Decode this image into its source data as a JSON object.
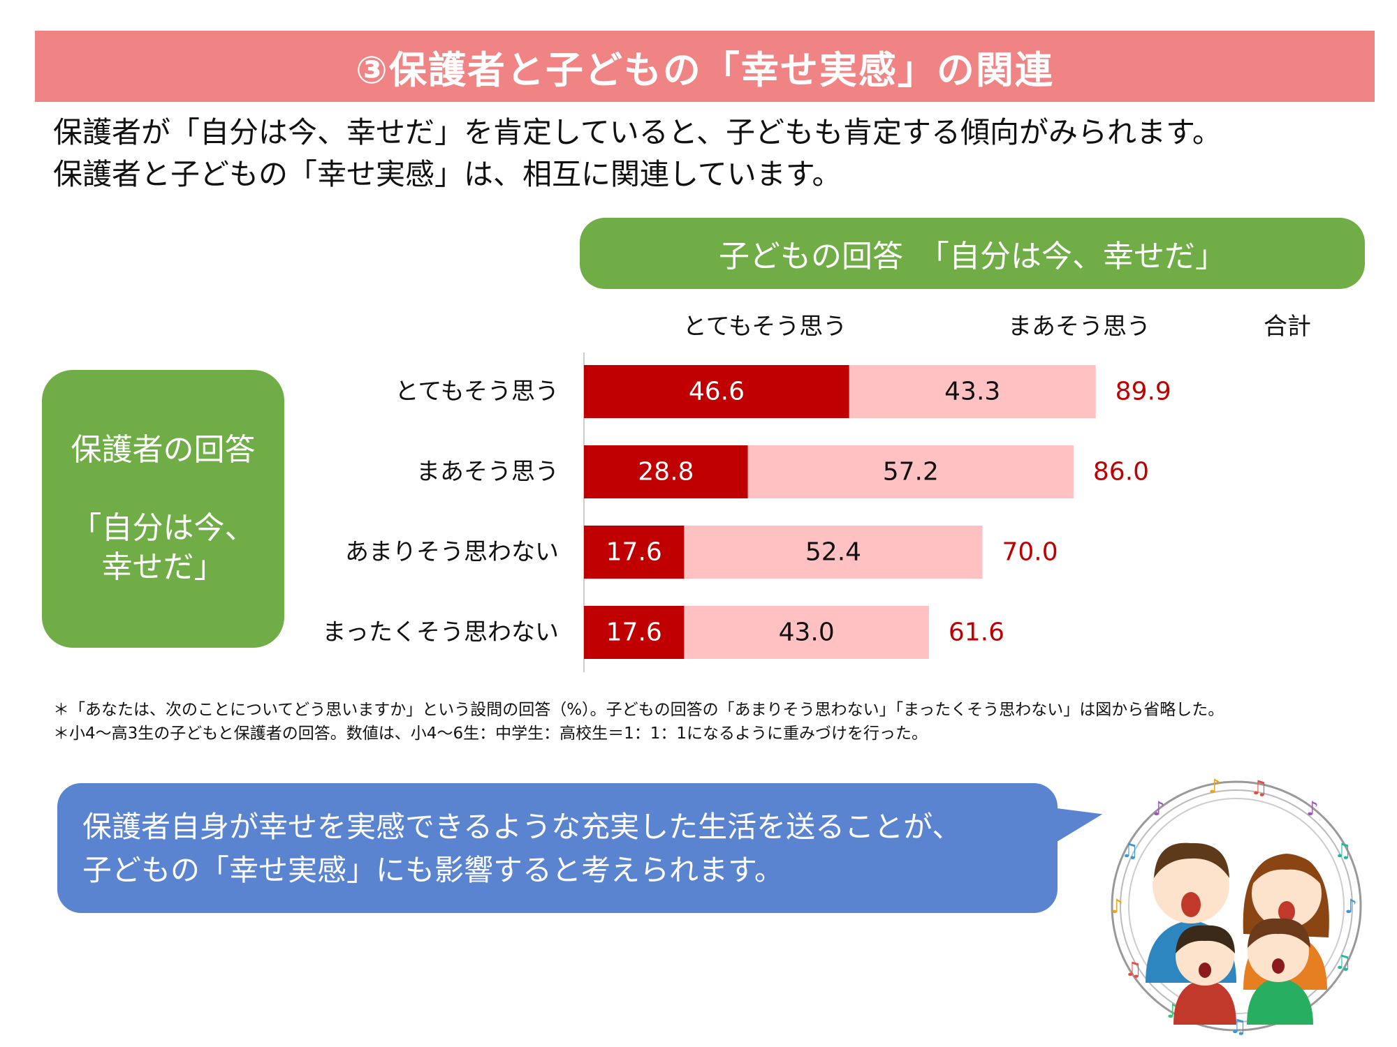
{
  "banner": {
    "title": "③保護者と子どもの「幸せ実感」の関連"
  },
  "intro": {
    "line1": "保護者が「自分は今、幸せだ」を肯定していると、子どもも肯定する傾向がみられます。",
    "line2": "保護者と子どもの「幸せ実感」は、相互に関連しています。"
  },
  "child_header": "子どもの回答　「自分は今、幸せだ」",
  "parent_box": {
    "line1": "保護者の回答",
    "line2": "「自分は今、",
    "line3": "幸せだ」"
  },
  "notes": {
    "line1": "＊「あなたは、次のことについてどう思いますか」という設問の回答（%）。子どもの回答の「あまりそう思わない」「まったくそう思わない」は図から省略した。",
    "line2": "＊小4～高3生の子どもと保護者の回答。数値は、小4～6生：中学生：高校生＝1：1：1になるように重みづけを行った。"
  },
  "bubble": {
    "line1": "保護者自身が幸せを実感できるような充実した生活を送ることが、",
    "line2": "子どもの「幸せ実感」にも影響すると考えられます。"
  },
  "colors": {
    "dark_red": "#c00000",
    "light_pink": "#ffc1c1",
    "total_text": "#c00000",
    "green": "#70ad47",
    "blue": "#5b84d0",
    "banner": "#f08383"
  },
  "chart_data": {
    "type": "bar",
    "orientation": "horizontal",
    "stacked": true,
    "categories": [
      "とてもそう思う",
      "まあそう思う",
      "あまりそう思わない",
      "まったくそう思わない"
    ],
    "column_headers": [
      "とてもそう思う",
      "まあそう思う",
      "合計"
    ],
    "series": [
      {
        "name": "とてもそう思う",
        "values": [
          46.6,
          28.8,
          17.6,
          17.6
        ]
      },
      {
        "name": "まあそう思う",
        "values": [
          43.3,
          57.2,
          52.4,
          43.0
        ]
      }
    ],
    "totals": [
      89.9,
      86.0,
      70.0,
      61.6
    ],
    "xlim": [
      0,
      100
    ]
  }
}
